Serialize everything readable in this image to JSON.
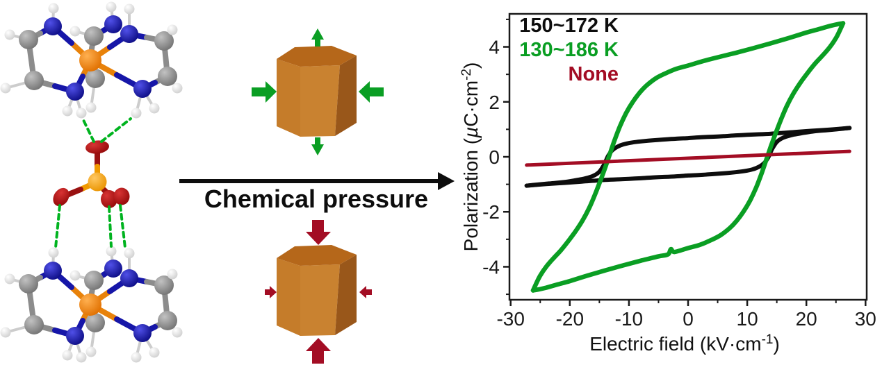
{
  "colors": {
    "black": "#0d0d0d",
    "green": "#0a9e23",
    "dark_red": "#a30d24",
    "axis": "#1a1a1a",
    "prism_top": "#b5671a",
    "prism_left": "#c57c2a",
    "prism_front": "#c98230",
    "prism_right": "#99571a",
    "bond_orange": "#e8820a",
    "bond_blue": "#1616a8",
    "bond_gray": "#8c8c8c",
    "bond_h": "#cccccc",
    "anion_bond_red": "#991111",
    "anion_bond_orange": "#f09a00",
    "hbond_green": "#00b31f"
  },
  "middle": {
    "arrow_label": "Chemical pressure"
  },
  "chart": {
    "legend": [
      {
        "label": "150~172 K",
        "color_key": "black"
      },
      {
        "label": "130~186 K",
        "color_key": "green"
      },
      {
        "label": "None",
        "color_key": "dark_red"
      }
    ],
    "xlabel_parts": {
      "main": "Electric field (kV·cm",
      "sup": "-1",
      "close": ")"
    },
    "ylabel_parts": {
      "pre": "Polarization (",
      "mu": "µ",
      "unit": "C·cm",
      "sup": "-2",
      "close": ")"
    }
  },
  "chart_data": {
    "type": "line",
    "title": "",
    "xlabel": "Electric field (kV·cm⁻¹)",
    "ylabel": "Polarization (µC·cm⁻²)",
    "xlim": [
      -30.2,
      30.2
    ],
    "ylim": [
      -5.2,
      5.2
    ],
    "x_ticks": [
      -30,
      -20,
      -10,
      0,
      10,
      20,
      30
    ],
    "y_ticks": [
      -4,
      -2,
      0,
      2,
      4
    ],
    "x_minor_ticks": [
      -25,
      -15,
      -5,
      5,
      15,
      25
    ],
    "y_minor_ticks": [
      -5,
      -3,
      -1,
      1,
      3,
      5
    ],
    "grid": false,
    "legend_position": "top-left-inside",
    "series": [
      {
        "name": "150~172 K",
        "color_key": "black",
        "stroke_width": 6,
        "shape": "hysteresis-loop",
        "coercive_field_kV_cm": 13.5,
        "saturation_polarization_uC_cm2": 1.05,
        "branch_decreasing": [
          [
            27.3,
            1.05
          ],
          [
            24,
            0.99
          ],
          [
            21,
            0.95
          ],
          [
            18,
            0.9
          ],
          [
            16,
            0.87
          ],
          [
            14,
            0.84
          ],
          [
            12,
            0.82
          ],
          [
            10,
            0.8
          ],
          [
            8,
            0.78
          ],
          [
            6,
            0.75
          ],
          [
            4,
            0.73
          ],
          [
            2,
            0.71
          ],
          [
            0,
            0.68
          ],
          [
            -2,
            0.66
          ],
          [
            -4,
            0.63
          ],
          [
            -6,
            0.6
          ],
          [
            -8,
            0.56
          ],
          [
            -9.5,
            0.52
          ],
          [
            -11,
            0.45
          ],
          [
            -12,
            0.36
          ],
          [
            -12.8,
            0.24
          ],
          [
            -13.5,
            0.04
          ],
          [
            -14.2,
            -0.28
          ],
          [
            -15,
            -0.54
          ],
          [
            -16,
            -0.69
          ],
          [
            -17.5,
            -0.79
          ],
          [
            -19,
            -0.85
          ],
          [
            -21,
            -0.92
          ],
          [
            -23.5,
            -0.97
          ],
          [
            -25.5,
            -1.01
          ],
          [
            -27.3,
            -1.05
          ]
        ],
        "branch_increasing": [
          [
            -27.3,
            -1.05
          ],
          [
            -24,
            -0.99
          ],
          [
            -21,
            -0.95
          ],
          [
            -18,
            -0.9
          ],
          [
            -16,
            -0.87
          ],
          [
            -14,
            -0.84
          ],
          [
            -12,
            -0.82
          ],
          [
            -10,
            -0.8
          ],
          [
            -8,
            -0.78
          ],
          [
            -6,
            -0.75
          ],
          [
            -4,
            -0.73
          ],
          [
            -2,
            -0.71
          ],
          [
            0,
            -0.68
          ],
          [
            2,
            -0.66
          ],
          [
            4,
            -0.63
          ],
          [
            6,
            -0.6
          ],
          [
            8,
            -0.56
          ],
          [
            9.5,
            -0.52
          ],
          [
            11,
            -0.45
          ],
          [
            12,
            -0.36
          ],
          [
            12.8,
            -0.24
          ],
          [
            13.5,
            -0.04
          ],
          [
            14.2,
            0.28
          ],
          [
            15,
            0.54
          ],
          [
            16,
            0.69
          ],
          [
            17.5,
            0.79
          ],
          [
            19,
            0.85
          ],
          [
            21,
            0.92
          ],
          [
            23.5,
            0.97
          ],
          [
            25.5,
            1.01
          ],
          [
            27.3,
            1.05
          ]
        ]
      },
      {
        "name": "130~186 K",
        "color_key": "green",
        "stroke_width": 6.5,
        "shape": "hysteresis-loop",
        "coercive_field_kV_cm": 13.5,
        "saturation_polarization_uC_cm2": 4.86,
        "branch_increasing": [
          [
            -26.2,
            -4.86
          ],
          [
            -25.7,
            -4.62
          ],
          [
            -25,
            -4.32
          ],
          [
            -24,
            -4.0
          ],
          [
            -22.8,
            -3.7
          ],
          [
            -21.5,
            -3.4
          ],
          [
            -20.2,
            -3.05
          ],
          [
            -19,
            -2.7
          ],
          [
            -17.8,
            -2.3
          ],
          [
            -16.7,
            -1.85
          ],
          [
            -15.7,
            -1.35
          ],
          [
            -14.8,
            -0.85
          ],
          [
            -14,
            -0.38
          ],
          [
            -13.2,
            0.12
          ],
          [
            -12.4,
            0.62
          ],
          [
            -11.5,
            1.12
          ],
          [
            -10.5,
            1.58
          ],
          [
            -9.4,
            1.98
          ],
          [
            -8.2,
            2.33
          ],
          [
            -7,
            2.6
          ],
          [
            -5.5,
            2.85
          ],
          [
            -4,
            3.02
          ],
          [
            -2,
            3.2
          ],
          [
            0,
            3.32
          ],
          [
            2.5,
            3.48
          ],
          [
            5,
            3.62
          ],
          [
            8,
            3.78
          ],
          [
            11,
            3.95
          ],
          [
            14,
            4.13
          ],
          [
            17,
            4.32
          ],
          [
            20,
            4.52
          ],
          [
            22,
            4.64
          ],
          [
            24,
            4.76
          ],
          [
            25.4,
            4.83
          ],
          [
            26.2,
            4.86
          ]
        ],
        "branch_decreasing": [
          [
            26.2,
            4.86
          ],
          [
            25.7,
            4.62
          ],
          [
            25,
            4.32
          ],
          [
            24,
            4.0
          ],
          [
            22.8,
            3.7
          ],
          [
            21.5,
            3.4
          ],
          [
            20.2,
            3.05
          ],
          [
            19,
            2.7
          ],
          [
            17.8,
            2.3
          ],
          [
            16.7,
            1.85
          ],
          [
            15.7,
            1.35
          ],
          [
            14.8,
            0.85
          ],
          [
            14,
            0.38
          ],
          [
            13.2,
            -0.12
          ],
          [
            12.4,
            -0.62
          ],
          [
            11.5,
            -1.12
          ],
          [
            10.5,
            -1.58
          ],
          [
            9.4,
            -1.98
          ],
          [
            8.2,
            -2.33
          ],
          [
            7,
            -2.6
          ],
          [
            5.5,
            -2.85
          ],
          [
            4,
            -3.02
          ],
          [
            2,
            -3.2
          ],
          [
            0,
            -3.32
          ],
          [
            -2.3,
            -3.46
          ],
          [
            -2.9,
            -3.36
          ],
          [
            -3.4,
            -3.55
          ],
          [
            -5,
            -3.62
          ],
          [
            -8,
            -3.78
          ],
          [
            -11,
            -3.95
          ],
          [
            -14,
            -4.13
          ],
          [
            -17,
            -4.32
          ],
          [
            -20,
            -4.52
          ],
          [
            -22,
            -4.64
          ],
          [
            -24,
            -4.76
          ],
          [
            -25.4,
            -4.83
          ],
          [
            -26.2,
            -4.86
          ]
        ]
      },
      {
        "name": "None",
        "color_key": "dark_red",
        "stroke_width": 5,
        "shape": "linear",
        "points": [
          [
            -27.3,
            -0.3
          ],
          [
            27.3,
            0.2
          ]
        ]
      }
    ]
  }
}
